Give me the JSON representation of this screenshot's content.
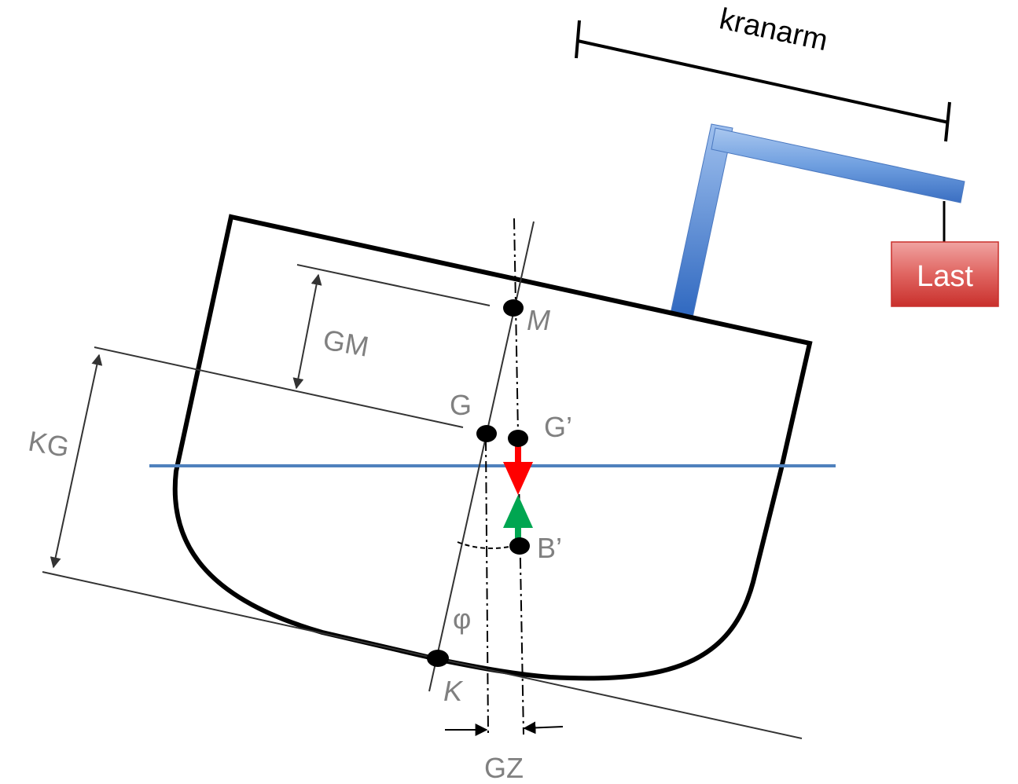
{
  "labels": {
    "crane_arm": "kranarm",
    "load": "Last",
    "metacenter": "M",
    "gm": "GM",
    "kg": "KG",
    "g": "G",
    "g_prime": "G’",
    "b_prime": "B’",
    "phi": "φ",
    "k": "K",
    "gz": "GZ"
  },
  "colors": {
    "hull": "#000000",
    "waterline": "#4f81bd",
    "crane": "#5b8fd6",
    "load_box": "#d9534f",
    "gravity_arrow": "#ff0000",
    "buoyancy_arrow": "#00a651",
    "dimension_gray": "#808080"
  }
}
